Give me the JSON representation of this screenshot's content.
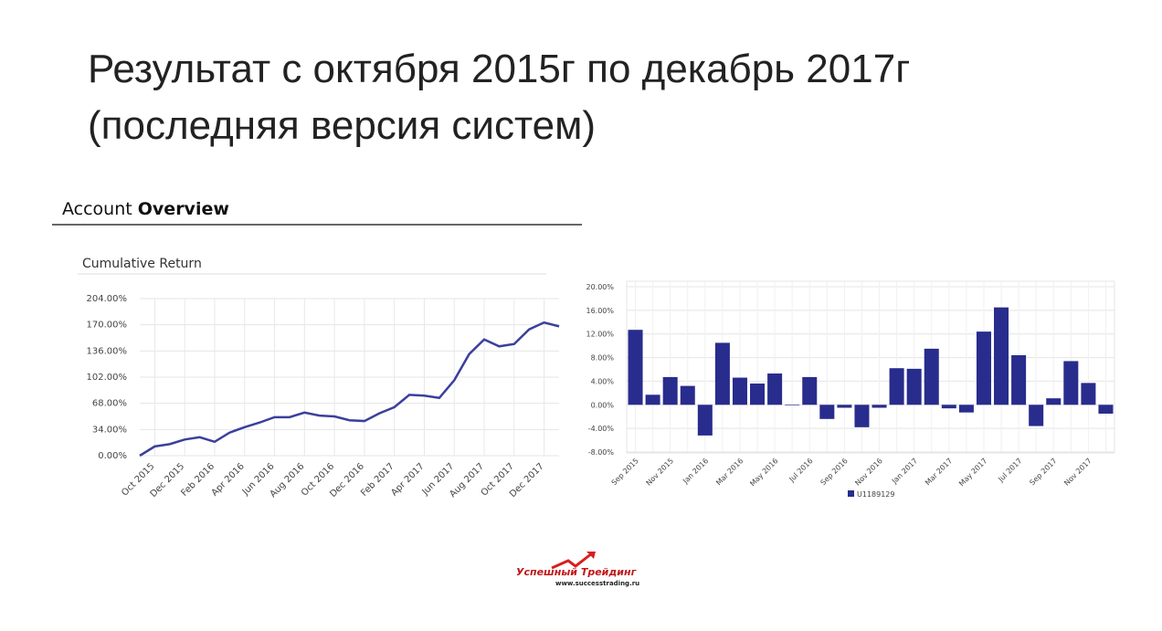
{
  "slide": {
    "title_lines": [
      "Результат с октября 2015г по декабрь 2017г",
      "(последняя версия систем)"
    ],
    "logo": {
      "name": "Успешный Трейдинг",
      "url": "www.successtrading.ru"
    }
  },
  "chart_data": [
    {
      "type": "line",
      "header": [
        "Account",
        "Overview"
      ],
      "title": "Cumulative Return",
      "color": "#3b3f9c",
      "grid": true,
      "categories": [
        null,
        "Oct 2015",
        null,
        "Dec 2015",
        null,
        "Feb 2016",
        null,
        "Apr 2016",
        null,
        "Jun 2016",
        null,
        "Aug 2016",
        null,
        "Oct 2016",
        null,
        "Dec 2016",
        null,
        "Feb 2017",
        null,
        "Apr 2017",
        null,
        "Jun 2017",
        null,
        "Aug 2017",
        null,
        "Oct 2017",
        null,
        "Dec 2017",
        null
      ],
      "values": [
        0,
        12,
        15,
        21,
        24,
        18,
        30,
        37,
        43,
        50,
        50,
        56,
        52,
        51,
        46,
        45,
        55,
        63,
        79,
        78,
        75,
        98,
        132,
        151,
        142,
        145,
        164,
        173,
        168
      ],
      "ylim": [
        0,
        204
      ],
      "yticks": [
        {
          "value": 0,
          "label": "0.00%"
        },
        {
          "value": 34,
          "label": "34.00%"
        },
        {
          "value": 68,
          "label": "68.00%"
        },
        {
          "value": 102,
          "label": "102.00%"
        },
        {
          "value": 136,
          "label": "136.00%"
        },
        {
          "value": 170,
          "label": "170.00%"
        },
        {
          "value": 204,
          "label": "204.00%"
        }
      ]
    },
    {
      "type": "bar",
      "color": "#282c8c",
      "grid": true,
      "legend": "bottom",
      "categories": [
        "Sep 2015",
        null,
        "Nov 2015",
        null,
        "Jan 2016",
        null,
        "Mar 2016",
        null,
        "May 2016",
        null,
        "Jul 2016",
        null,
        "Sep 2016",
        null,
        "Nov 2016",
        null,
        "Jan 2017",
        null,
        "Mar 2017",
        null,
        "May 2017",
        null,
        "Jul 2017",
        null,
        "Sep 2017",
        null,
        "Nov 2017",
        null
      ],
      "series": [
        {
          "name": "U1189129",
          "color": "#282c8c",
          "values": [
            12.7,
            1.7,
            4.7,
            3.2,
            -5.2,
            10.5,
            4.6,
            3.6,
            5.3,
            -0.1,
            4.7,
            -2.4,
            -0.5,
            -3.8,
            -0.5,
            6.2,
            6.1,
            9.5,
            -0.6,
            -1.3,
            12.4,
            16.5,
            8.4,
            -3.6,
            1.1,
            7.4,
            3.7,
            -1.5
          ]
        }
      ],
      "ylim": [
        -8,
        20
      ],
      "yticks": [
        {
          "value": -8,
          "label": "-8.00%"
        },
        {
          "value": -4,
          "label": "-4.00%"
        },
        {
          "value": 0,
          "label": "0.00%"
        },
        {
          "value": 4,
          "label": "4.00%"
        },
        {
          "value": 8,
          "label": "8.00%"
        },
        {
          "value": 12,
          "label": "12.00%"
        },
        {
          "value": 16,
          "label": "16.00%"
        },
        {
          "value": 20,
          "label": "20.00%"
        }
      ]
    }
  ]
}
